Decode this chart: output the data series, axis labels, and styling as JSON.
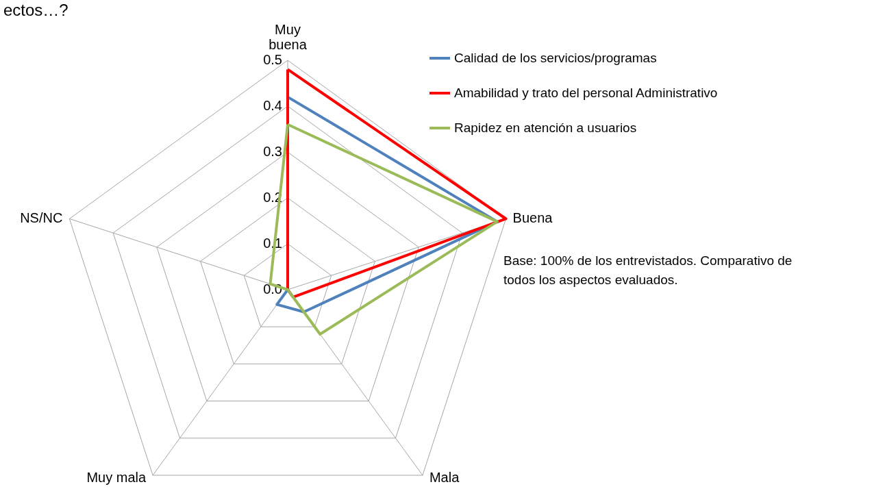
{
  "chart_data": {
    "type": "radar",
    "title": "ectos…?",
    "categories": [
      "Muy buena",
      "Buena",
      "Mala",
      "Muy mala",
      "NS/NC"
    ],
    "series": [
      {
        "name": "Calidad de los servicios/programas",
        "color": "#4f81bd",
        "values": [
          0.42,
          0.48,
          0.06,
          0.04,
          0.0
        ]
      },
      {
        "name": "Amabilidad y trato del personal Administrativo",
        "color": "#ff0000",
        "values": [
          0.48,
          0.5,
          0.02,
          0.0,
          0.0
        ]
      },
      {
        "name": "Rapidez en atención a usuarios",
        "color": "#9bbb59",
        "values": [
          0.36,
          0.48,
          0.12,
          0.0,
          0.04
        ]
      }
    ],
    "ylim": [
      0,
      0.5
    ],
    "yticks": [
      {
        "value": 0,
        "label": "0.0"
      },
      0.1,
      0.2,
      0.3,
      0.4,
      0.5
    ],
    "grid": true,
    "legend": "top right",
    "line_style": "solid",
    "annotations": [
      "Base: 100% de los entrevistados. Comparativo de todos los aspectos evaluados."
    ]
  }
}
